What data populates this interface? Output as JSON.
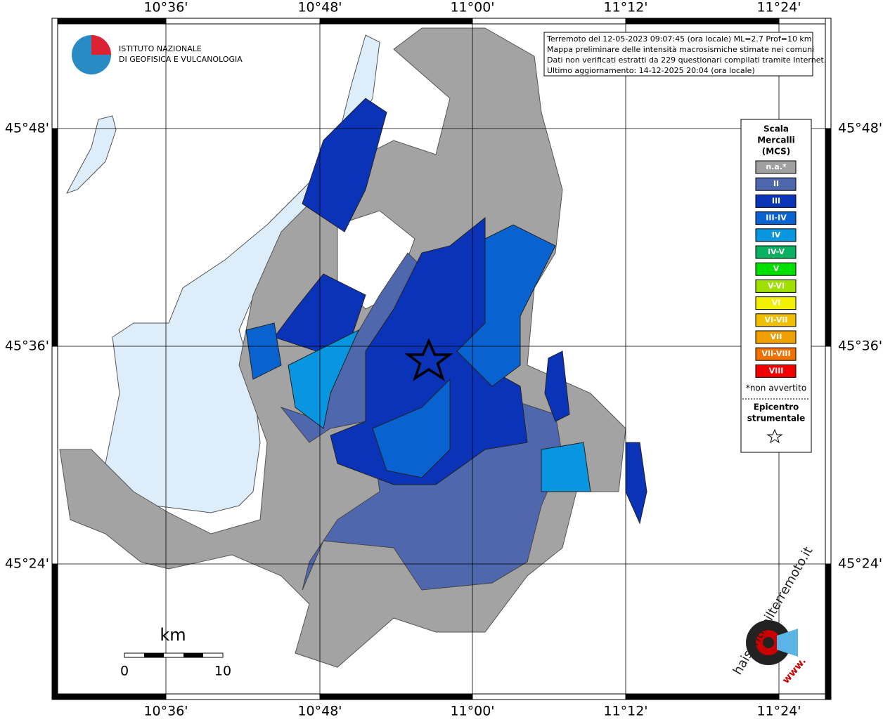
{
  "map": {
    "top_labels": [
      "10°36'",
      "10°48'",
      "11°00'",
      "11°12'",
      "11°24'"
    ],
    "bottom_labels": [
      "10°36'",
      "10°48'",
      "11°00'",
      "11°12'",
      "11°24'"
    ],
    "left_labels": [
      "45°48'",
      "45°36'",
      "45°24'"
    ],
    "right_labels": [
      "45°48'",
      "45°36'",
      "45°24'"
    ]
  },
  "logo": {
    "line1": "ISTITUTO NAZIONALE",
    "line2": "DI GEOFISICA E VULCANOLOGIA"
  },
  "info_box": [
    "Terremoto del 12-05-2023 09:07:45 (ora locale) ML=2.7 Prof=10 km",
    "Mappa preliminare delle intensità macrosismiche stimate nei comuni",
    "Dati non verificati estratti da 229 questionari compilati tramite Internet.",
    "Ultimo aggiornamento: 14-12-2025 20:04 (ora locale)"
  ],
  "legend": {
    "title": [
      "Scala",
      "Mercalli",
      "(MCS)"
    ],
    "items": [
      {
        "label": "n.a.*",
        "color": "#a0a0a0"
      },
      {
        "label": "II",
        "color": "#4f67ad"
      },
      {
        "label": "III",
        "color": "#0a33b8"
      },
      {
        "label": "III-IV",
        "color": "#0863d0"
      },
      {
        "label": "IV",
        "color": "#0896e0"
      },
      {
        "label": "IV-V",
        "color": "#08b060"
      },
      {
        "label": "V",
        "color": "#00e000"
      },
      {
        "label": "V-VI",
        "color": "#a0e000"
      },
      {
        "label": "VI",
        "color": "#f0f000"
      },
      {
        "label": "VI-VII",
        "color": "#f0c000"
      },
      {
        "label": "VII",
        "color": "#f0a000"
      },
      {
        "label": "VII-VIII",
        "color": "#f07000"
      },
      {
        "label": "VIII",
        "color": "#f00000"
      }
    ],
    "note": "*non avvertito",
    "epicenter": [
      "Epicentro",
      "strumentale"
    ]
  },
  "scale_bar": {
    "unit": "km",
    "start": "0",
    "end": "10"
  },
  "badge": {
    "site": "haisentitoilterremoto.it",
    "prefix": "www."
  }
}
